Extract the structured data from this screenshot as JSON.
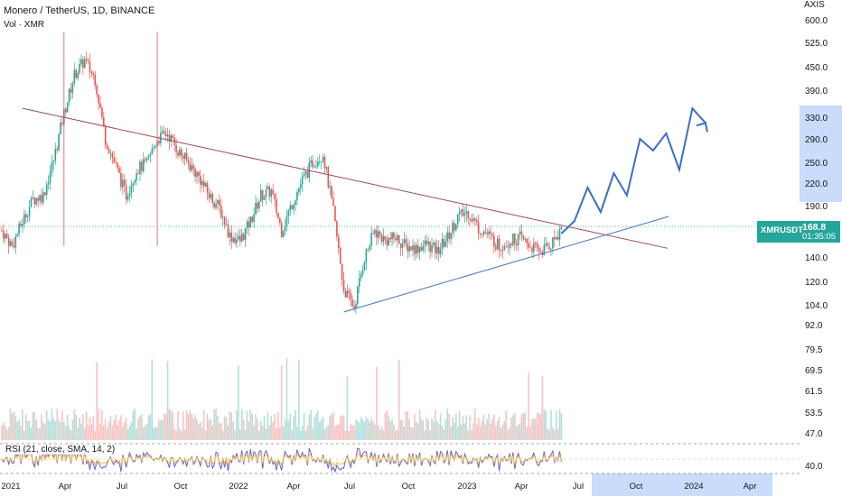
{
  "header": {
    "title": "Monero / TetherUS, 1D, BINANCE",
    "volume_label": "Vol · XMR"
  },
  "top_right_label": "AXIS",
  "price_axis": {
    "ticks": [
      "600.0",
      "525.0",
      "450.0",
      "390.0",
      "330.0",
      "290.0",
      "250.0",
      "220.0",
      "190.0",
      "140.0",
      "120.0",
      "104.0",
      "92.0",
      "79.5",
      "69.5",
      "61.5",
      "53.5",
      "47.0",
      "40.0"
    ],
    "highlight_range": [
      220,
      330
    ]
  },
  "time_axis": {
    "ticks": [
      "2021",
      "Apr",
      "Jul",
      "Oct",
      "2022",
      "Apr",
      "Jul",
      "Oct",
      "2023",
      "Apr",
      "Jul",
      "Oct",
      "2024",
      "Apr"
    ],
    "future_start": "Jul"
  },
  "last_price": {
    "symbol": "XMRUSDT",
    "value": "168.8",
    "countdown": "01:35:05",
    "color": "#26a69a"
  },
  "indicator": {
    "label": "RSI (21, close, SMA, 14, 2)",
    "value_label": "40.00"
  },
  "colors": {
    "up": "#26a69a",
    "down": "#ef5350",
    "resistance_line": "#9c4a5a",
    "support_line": "#4a72c8",
    "projection": "#3b6fc4",
    "rsi_line": "#6d5bd0",
    "rsi_signal": "#f5c242",
    "future_band": "#c9dcfb"
  },
  "chart_data": {
    "type": "line",
    "title": "Monero / TetherUS, 1D, BINANCE",
    "series": [
      {
        "values": [
          [
            0,
            165
          ],
          [
            3,
            150
          ],
          [
            6,
            175
          ],
          [
            9,
            200
          ],
          [
            12,
            205
          ],
          [
            15,
            255
          ],
          [
            18,
            340
          ],
          [
            21,
            430
          ],
          [
            24,
            470
          ],
          [
            27,
            420
          ],
          [
            30,
            290
          ],
          [
            33,
            245
          ],
          [
            36,
            205
          ],
          [
            39,
            240
          ],
          [
            42,
            250
          ],
          [
            45,
            290
          ],
          [
            48,
            300
          ],
          [
            51,
            270
          ],
          [
            54,
            250
          ],
          [
            57,
            230
          ],
          [
            60,
            205
          ],
          [
            63,
            190
          ],
          [
            66,
            160
          ],
          [
            69,
            155
          ],
          [
            72,
            175
          ],
          [
            75,
            205
          ],
          [
            78,
            210
          ],
          [
            81,
            165
          ],
          [
            84,
            195
          ],
          [
            87,
            225
          ],
          [
            90,
            250
          ],
          [
            93,
            265
          ],
          [
            96,
            185
          ],
          [
            99,
            115
          ],
          [
            102,
            103
          ],
          [
            105,
            140
          ],
          [
            108,
            165
          ],
          [
            111,
            155
          ],
          [
            114,
            158
          ],
          [
            117,
            150
          ],
          [
            120,
            148
          ],
          [
            123,
            152
          ],
          [
            126,
            145
          ],
          [
            129,
            158
          ],
          [
            132,
            180
          ],
          [
            135,
            185
          ],
          [
            138,
            168
          ],
          [
            141,
            160
          ],
          [
            144,
            150
          ],
          [
            147,
            155
          ],
          [
            150,
            158
          ],
          [
            153,
            150
          ],
          [
            156,
            145
          ],
          [
            159,
            152
          ],
          [
            162,
            168
          ]
        ]
      }
    ],
    "annotations": {
      "resistance_line": [
        [
          6,
          350
        ],
        [
          177,
          148
        ]
      ],
      "support_line": [
        [
          99,
          100
        ],
        [
          180,
          180
        ]
      ],
      "projection_path": [
        162,
        175,
        215,
        185,
        235,
        205,
        290,
        270,
        300,
        240,
        350,
        320
      ]
    }
  }
}
